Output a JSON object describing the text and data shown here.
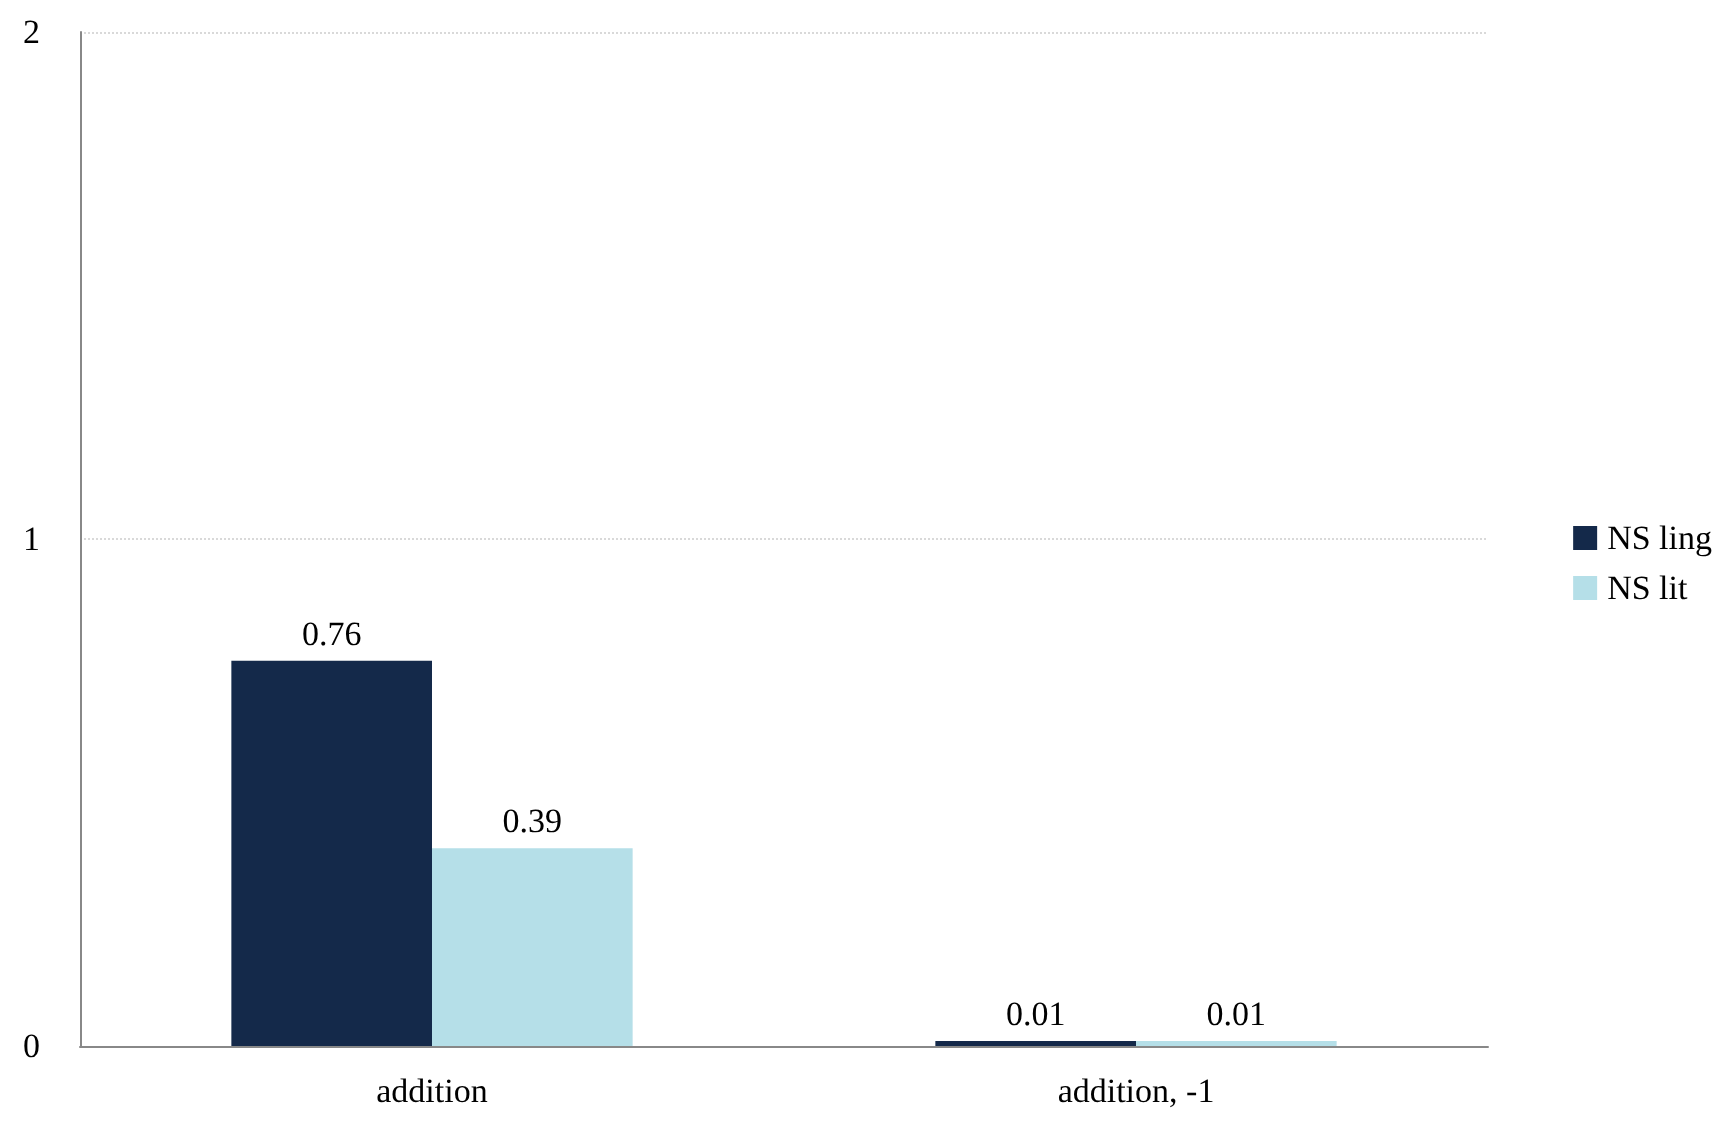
{
  "chart_data": {
    "type": "bar",
    "categories": [
      "addition",
      "addition, -1"
    ],
    "series": [
      {
        "name": "NS ling",
        "color": "#14294a",
        "values": [
          0.76,
          0.01
        ]
      },
      {
        "name": "NS lit",
        "color": "#b5dfe8",
        "values": [
          0.39,
          0.01
        ]
      }
    ],
    "ylim": [
      0,
      2
    ],
    "yticks": [
      0,
      1,
      2
    ],
    "grid": "y",
    "legend": "right",
    "data_labels": true
  }
}
